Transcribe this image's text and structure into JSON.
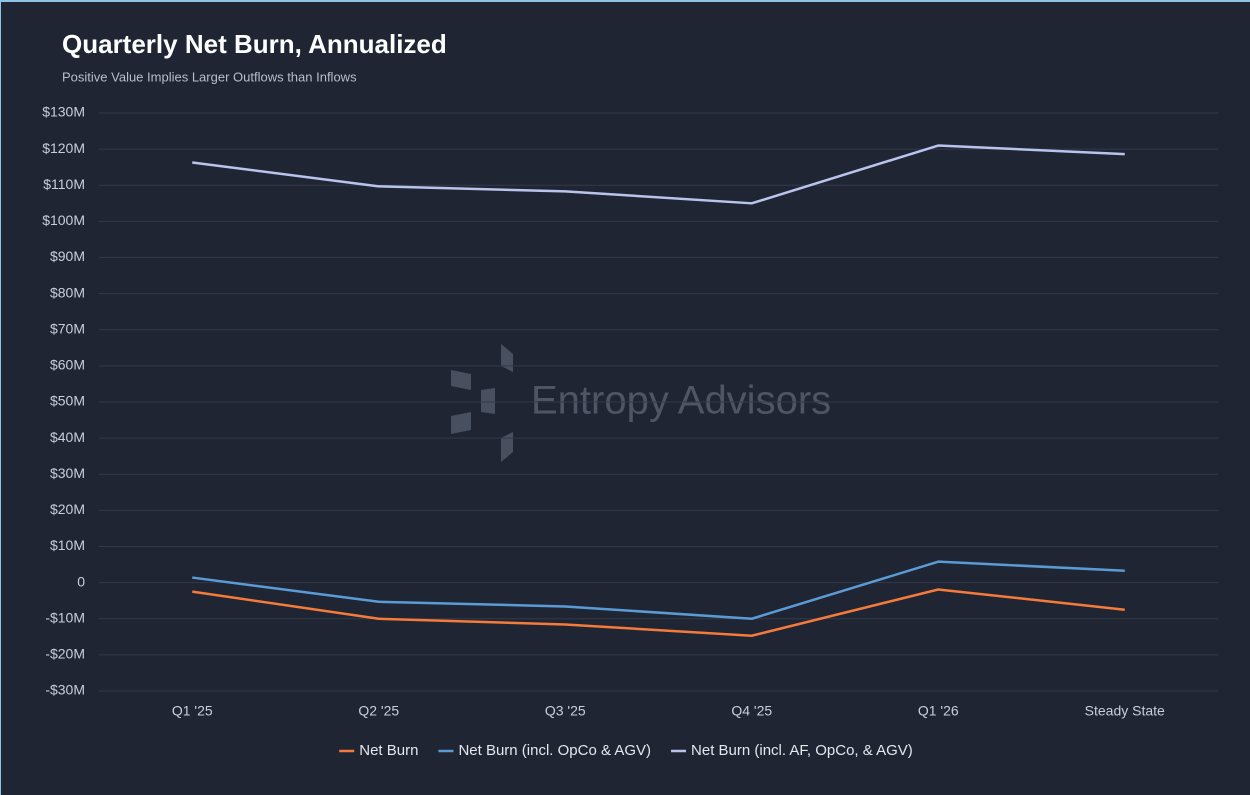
{
  "chart_data": {
    "type": "line",
    "title": "Quarterly Net Burn, Annualized",
    "subtitle": "Positive Value Implies Larger Outflows than Inflows",
    "watermark": "Entropy Advisors",
    "categories": [
      "Q1 '25",
      "Q2 '25",
      "Q3 '25",
      "Q4 '25",
      "Q1 '26",
      "Steady State"
    ],
    "series": [
      {
        "name": "Net Burn",
        "color": "#f47b3a",
        "values": [
          -2.5,
          -10,
          -11.6,
          -14.7,
          -1.9,
          -7.5
        ]
      },
      {
        "name": "Net Burn (incl. OpCo & AGV)",
        "color": "#5b9bd5",
        "values": [
          1.4,
          -5.3,
          -6.6,
          -10,
          5.8,
          3.3
        ]
      },
      {
        "name": "Net Burn (incl. AF, OpCo, & AGV)",
        "color": "#b8c4ec",
        "values": [
          116.3,
          109.7,
          108.3,
          105,
          121,
          118.6
        ]
      }
    ],
    "ylim": [
      -30,
      130
    ],
    "yticks": [
      {
        "value": -30,
        "label": "-$30M"
      },
      {
        "value": -20,
        "label": "-$20M"
      },
      {
        "value": -10,
        "label": "-$10M"
      },
      0,
      {
        "value": 10,
        "label": "$10M"
      },
      {
        "value": 20,
        "label": "$20M"
      },
      {
        "value": 30,
        "label": "$30M"
      },
      {
        "value": 40,
        "label": "$40M"
      },
      {
        "value": 50,
        "label": "$50M"
      },
      {
        "value": 60,
        "label": "$60M"
      },
      {
        "value": 70,
        "label": "$70M"
      },
      {
        "value": 80,
        "label": "$80M"
      },
      {
        "value": 90,
        "label": "$90M"
      },
      {
        "value": 100,
        "label": "$100M"
      },
      {
        "value": 110,
        "label": "$110M"
      },
      {
        "value": 120,
        "label": "$120M"
      },
      {
        "value": 130,
        "label": "$130M"
      }
    ],
    "grid": true,
    "legend": "bottom"
  }
}
